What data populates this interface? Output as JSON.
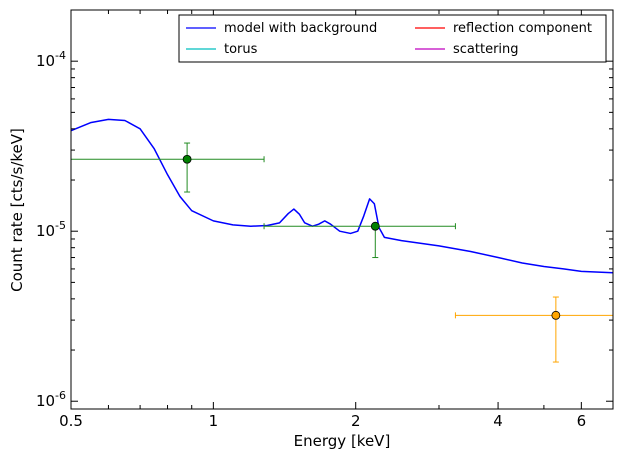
{
  "chart_data": {
    "type": "line",
    "x_scale": "log",
    "y_scale": "log",
    "xlabel": "Energy [keV]",
    "ylabel": "Count rate [cts/s/keV]",
    "xlim": [
      0.5,
      7.0
    ],
    "ylim": [
      9e-07,
      0.0002
    ],
    "x_ticks": [
      {
        "value": 0.5,
        "label": "0.5"
      },
      {
        "value": 1,
        "label": "1"
      },
      {
        "value": 2,
        "label": "2"
      },
      {
        "value": 4,
        "label": "4"
      },
      {
        "value": 6,
        "label": "6"
      }
    ],
    "y_ticks": [
      {
        "value": 1e-06,
        "base": "10",
        "exp": "-6"
      },
      {
        "value": 1e-05,
        "base": "10",
        "exp": "-5"
      },
      {
        "value": 0.0001,
        "base": "10",
        "exp": "-4"
      }
    ],
    "legend": {
      "placement": "top-right",
      "columns": 2,
      "entries": [
        {
          "label": "model with background",
          "color": "#0000ff"
        },
        {
          "label": "torus",
          "color": "#00bfbf"
        },
        {
          "label": "reflection component",
          "color": "#ff0000"
        },
        {
          "label": "scattering",
          "color": "#bf00bf"
        }
      ]
    },
    "model_curve": {
      "color": "#0000ff",
      "points": [
        [
          0.5,
          3.9e-05
        ],
        [
          0.55,
          4.35e-05
        ],
        [
          0.6,
          4.55e-05
        ],
        [
          0.65,
          4.48e-05
        ],
        [
          0.7,
          4e-05
        ],
        [
          0.75,
          3.05e-05
        ],
        [
          0.8,
          2.15e-05
        ],
        [
          0.85,
          1.6e-05
        ],
        [
          0.9,
          1.32e-05
        ],
        [
          1.0,
          1.15e-05
        ],
        [
          1.1,
          1.09e-05
        ],
        [
          1.2,
          1.07e-05
        ],
        [
          1.3,
          1.08e-05
        ],
        [
          1.38,
          1.12e-05
        ],
        [
          1.44,
          1.27e-05
        ],
        [
          1.48,
          1.35e-05
        ],
        [
          1.52,
          1.26e-05
        ],
        [
          1.56,
          1.12e-05
        ],
        [
          1.62,
          1.07e-05
        ],
        [
          1.67,
          1.1e-05
        ],
        [
          1.72,
          1.15e-05
        ],
        [
          1.77,
          1.1e-05
        ],
        [
          1.85,
          1e-05
        ],
        [
          1.95,
          9.7e-06
        ],
        [
          2.02,
          1e-05
        ],
        [
          2.08,
          1.23e-05
        ],
        [
          2.14,
          1.55e-05
        ],
        [
          2.19,
          1.45e-05
        ],
        [
          2.24,
          1.05e-05
        ],
        [
          2.3,
          9.2e-06
        ],
        [
          2.5,
          8.8e-06
        ],
        [
          3.0,
          8.2e-06
        ],
        [
          3.5,
          7.6e-06
        ],
        [
          4.0,
          7e-06
        ],
        [
          4.5,
          6.5e-06
        ],
        [
          5.0,
          6.2e-06
        ],
        [
          5.5,
          6e-06
        ],
        [
          6.0,
          5.8e-06
        ],
        [
          7.0,
          5.7e-06
        ]
      ]
    },
    "data_points": [
      {
        "x": 0.88,
        "x_lo": 0.5,
        "x_hi": 1.28,
        "y": 2.65e-05,
        "y_lo": 1.7e-05,
        "y_hi": 3.3e-05,
        "line_color": "#228b22",
        "marker_color": "#008000"
      },
      {
        "x": 2.2,
        "x_lo": 1.28,
        "x_hi": 3.25,
        "y": 1.07e-05,
        "y_lo": 7e-06,
        "y_hi": 1.08e-05,
        "line_color": "#228b22",
        "marker_color": "#008000"
      },
      {
        "x": 5.3,
        "x_lo": 3.25,
        "x_hi": 7.0,
        "y": 3.2e-06,
        "y_lo": 1.7e-06,
        "y_hi": 4.1e-06,
        "line_color": "#ffa500",
        "marker_color": "#ffa500"
      }
    ]
  }
}
